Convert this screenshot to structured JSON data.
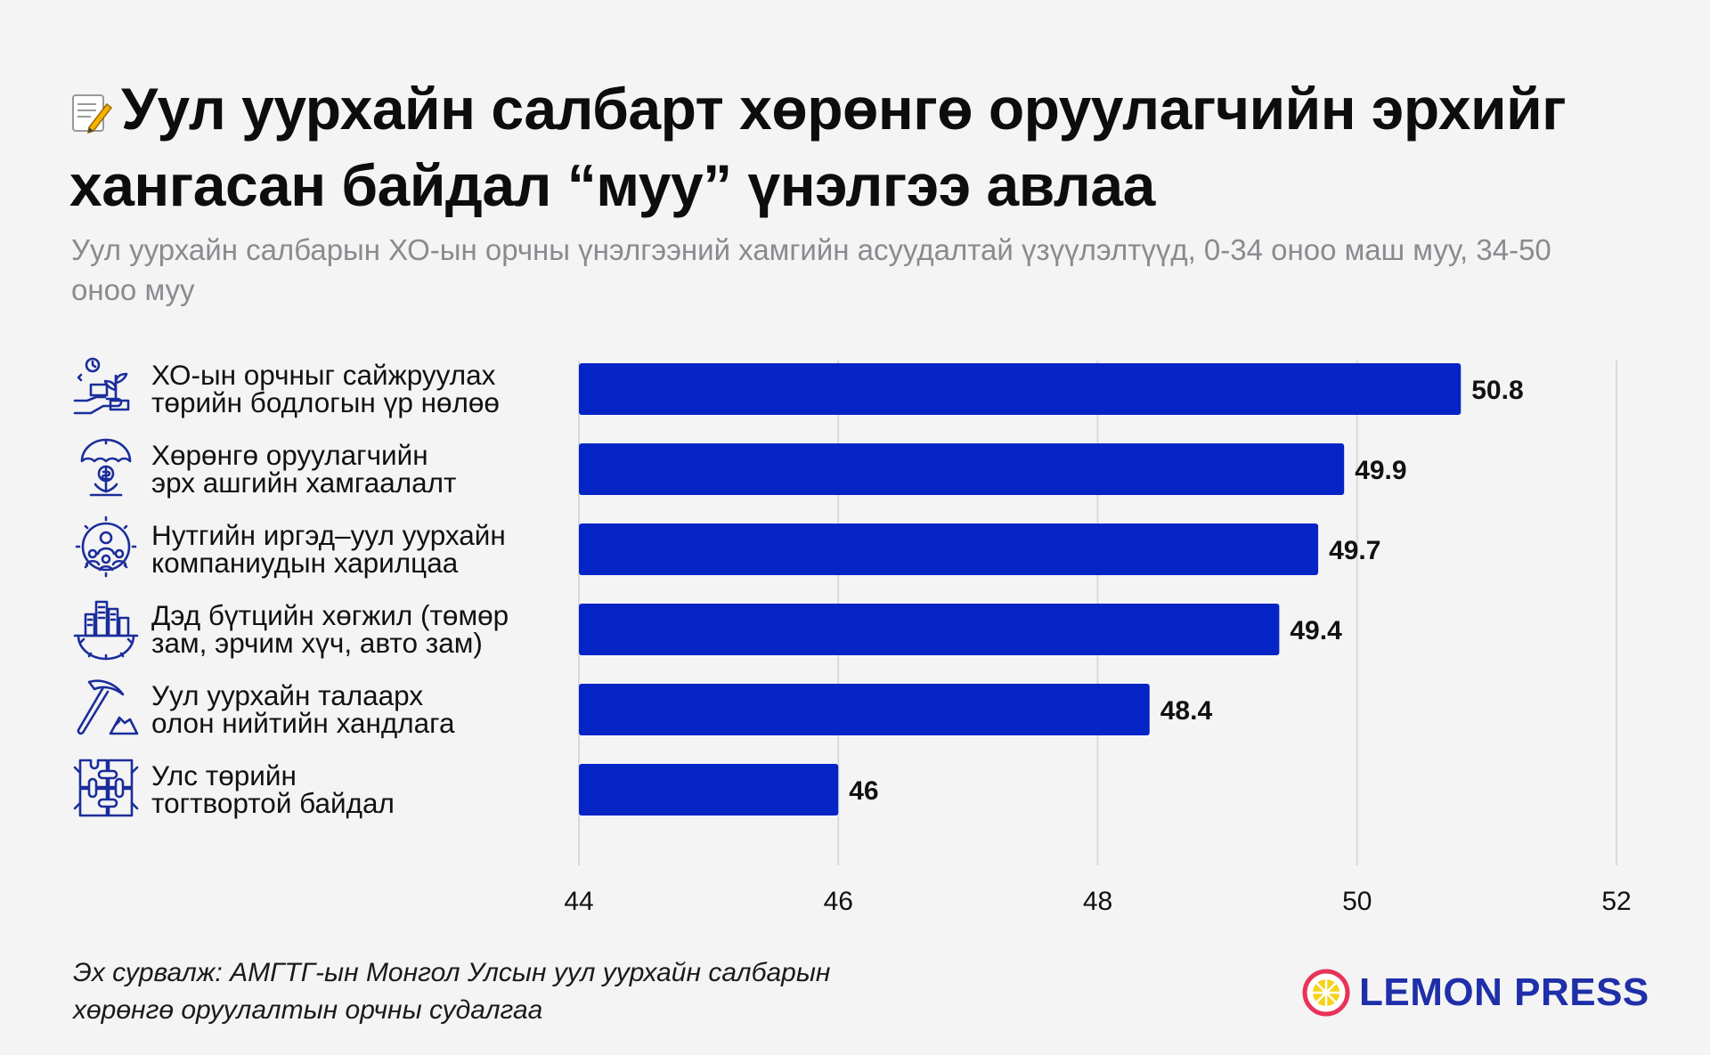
{
  "title": "Уул уурхайн салбарт хөрөнгө оруулагчийн эрхийг хангасан байдал “муу” үнэлгээ авлаа",
  "subtitle": "Уул уурхайн салбарын ХО-ын орчны үнэлгээний хамгийн асуудалтай үзүүлэлтүүд, 0-34 оноо маш муу, 34-50 оноо муу",
  "chart_data": {
    "type": "bar",
    "orientation": "horizontal",
    "categories": [
      "ХО-ын орчныг сайжруулах\nтөрийн бодлогын үр нөлөө",
      "Хөрөнгө оруулагчийн\nэрх ашгийн хамгаалалт",
      "Нутгийн иргэд–уул уурхайн\nкомпаниудын харилцаа",
      "Дэд бүтцийн хөгжил (төмөр\nзам, эрчим хүч, авто зам)",
      "Уул уурхайн талаарх\nолон нийтийн хандлага",
      "Улс төрийн\nтогтвортой байдал"
    ],
    "values": [
      50.8,
      49.9,
      49.7,
      49.4,
      48.4,
      46
    ],
    "value_labels": [
      "50.8",
      "49.9",
      "49.7",
      "49.4",
      "48.4",
      "46"
    ],
    "xlim": [
      44,
      52
    ],
    "ticks": [
      "44",
      "46",
      "48",
      "50",
      "52"
    ],
    "tick_values": [
      44,
      46,
      48,
      50,
      52
    ],
    "grid": true,
    "bar_color": "#0524c6"
  },
  "icons": [
    "plant-growth-icon",
    "investment-protection-icon",
    "community-relations-icon",
    "infrastructure-icon",
    "pickaxe-mining-icon",
    "political-stability-icon"
  ],
  "source": "Эх сурвалж: АМГТГ-ын Монгол Улсын уул уурхайн салбарын\nхөрөнгө оруулалтын орчны судалгаа",
  "brand": {
    "name": "LEMON PRESS",
    "color": "#1f2fa8",
    "accent": "#e8345a"
  },
  "colors": {
    "background": "#f4f4f5",
    "bar": "#0524c6",
    "icon": "#1b2d9a",
    "grid": "#d9d9dd"
  }
}
